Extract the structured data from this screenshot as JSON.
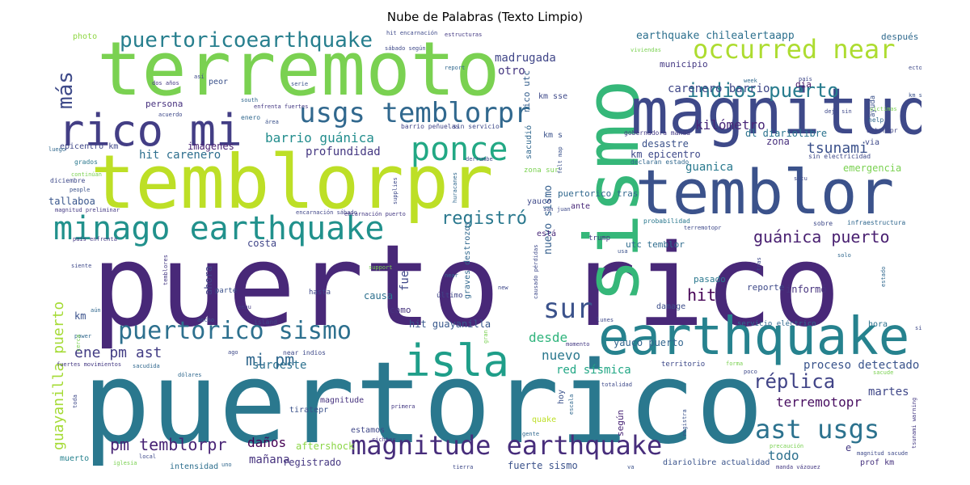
{
  "figure": {
    "title": "Nube de Palabras (Texto Limpio)"
  },
  "words": {
    "puerto_rico": {
      "text": "puerto rico",
      "color": "#482878"
    },
    "puertorico": {
      "text": "puertorico",
      "color": "#2a788e"
    },
    "terremoto": {
      "text": "terremoto",
      "color": "#7ad151"
    },
    "temblorpr": {
      "text": "temblorpr",
      "color": "#bddf26"
    },
    "sismo": {
      "text": "sismo",
      "color": "#35b779"
    },
    "magnitud": {
      "text": "magnitud",
      "color": "#3e4989"
    },
    "temblor": {
      "text": "temblor",
      "color": "#3b528b"
    },
    "earthquake": {
      "text": "earthquake",
      "color": "#26828e"
    },
    "rico_mi": {
      "text": "rico mi",
      "color": "#433e85"
    },
    "isla": {
      "text": "isla",
      "color": "#1f9e89"
    },
    "minago_earthquake": {
      "text": "minago earthquake",
      "color": "#21918c"
    },
    "magnitude_earthquake": {
      "text": "magnitude earthquake",
      "color": "#472d7b"
    },
    "usgs_temblorpr": {
      "text": "usgs temblorpr",
      "color": "#31688e"
    },
    "ponce": {
      "text": "ponce",
      "color": "#22a884"
    },
    "occurred_near": {
      "text": "occurred near",
      "color": "#addc30"
    },
    "puertorico_sismo": {
      "text": "puertorico sismo",
      "color": "#2d708e"
    },
    "puertoricoearthquake": {
      "text": "puertoricoearthquake",
      "color": "#277f8e"
    },
    "sur": {
      "text": "sur",
      "color": "#3b528b"
    },
    "ast_usgs": {
      "text": "ast usgs",
      "color": "#2c728e"
    },
    "indios_puerto": {
      "text": "indios puerto",
      "color": "#287c8e"
    },
    "mas": {
      "text": "más",
      "color": "#3e4a89"
    },
    "guanica_puerto": {
      "text": "guánica puerto",
      "color": "#481f70"
    },
    "replica": {
      "text": "réplica",
      "color": "#414487"
    },
    "tsunami": {
      "text": "tsunami",
      "color": "#3b518b"
    },
    "registro": {
      "text": "registró",
      "color": "#2a788e"
    },
    "guayanilla_puerto": {
      "text": "guayanilla puerto",
      "color": "#a5db36"
    },
    "pm_temblorpr": {
      "text": "pm temblorpr",
      "color": "#482475"
    },
    "mi_pm": {
      "text": "mi pm",
      "color": "#31688e"
    },
    "earthquake_chilealertaapp": {
      "text": "earthquake chilealertaapp",
      "color": "#2d708e"
    },
    "madrugada": {
      "text": "madrugada",
      "color": "#404688"
    },
    "otro": {
      "text": "otro",
      "color": "#453781"
    },
    "carenero_barrio": {
      "text": "carenero barrio",
      "color": "#3f4788"
    },
    "kilometro": {
      "text": "kilómetro",
      "color": "#482677"
    },
    "barrio_guanica": {
      "text": "barrio guánica",
      "color": "#228d8d"
    },
    "profundidad": {
      "text": "profundidad",
      "color": "#453882"
    },
    "hit_carenero": {
      "text": "hit carenero",
      "color": "#2e6f8e"
    },
    "imagenes": {
      "text": "imágenes",
      "color": "#482173"
    },
    "emergencia": {
      "text": "emergencia",
      "color": "#7ad151"
    },
    "guanica": {
      "text": "guanica",
      "color": "#29798e"
    },
    "desde": {
      "text": "desde",
      "color": "#2fb47c"
    },
    "nuevo": {
      "text": "nuevo",
      "color": "#2a788e"
    },
    "suroeste": {
      "text": "suroeste",
      "color": "#2d718e"
    },
    "ene_pm_ast": {
      "text": "ene  pm ast",
      "color": "#433d84"
    },
    "hit": {
      "text": "hit",
      "color": "#440154"
    },
    "red_sismica": {
      "text": "red sísmica",
      "color": "#22a785"
    },
    "proceso_detectado": {
      "text": "proceso detectado",
      "color": "#3a548c"
    },
    "terremotopr": {
      "text": "terremotopr",
      "color": "#470d60"
    },
    "todo": {
      "text": "todo",
      "color": "#2d708e"
    },
    "martes": {
      "text": "martes",
      "color": "#3f4788"
    },
    "danos": {
      "text": "daños",
      "color": "#440154"
    },
    "manana": {
      "text": "mañana",
      "color": "#46327e"
    },
    "registrado": {
      "text": "registrado",
      "color": "#453781"
    },
    "aftershock": {
      "text": "aftershock",
      "color": "#8bd646"
    },
    "fuerte_sismo": {
      "text": "fuerte sismo",
      "color": "#3b528b"
    },
    "tallaboa": {
      "text": "tallaboa",
      "color": "#39568c"
    },
    "km_epicentro": {
      "text": "km epicentro",
      "color": "#3e4989"
    },
    "desastre": {
      "text": "desastre",
      "color": "#3b528b"
    },
    "zona": {
      "text": "zona",
      "color": "#472f7d"
    },
    "dl_diariolibre": {
      "text": "dl diariolibre",
      "color": "#2c738e"
    },
    "municipio": {
      "text": "municipio",
      "color": "#443983"
    },
    "dia": {
      "text": "día",
      "color": "#481769"
    },
    "despues": {
      "text": "después",
      "color": "#306a8e"
    },
    "causa": {
      "text": "causa",
      "color": "#2d708e"
    },
    "como": {
      "text": "como",
      "color": "#46337e"
    },
    "hit_guayanilla": {
      "text": "hit guayanilla",
      "color": "#38588c"
    },
    "yauco_puerto": {
      "text": "yauco puerto",
      "color": "#32658e"
    },
    "km": {
      "text": "km",
      "color": "#3b528b"
    },
    "costa": {
      "text": "costa",
      "color": "#404588"
    },
    "ahora": {
      "text": "ahora",
      "color": "#414487"
    },
    "fue": {
      "text": "fue",
      "color": "#3f4889"
    },
    "nuevo_sismo": {
      "text": "nuevo sismo",
      "color": "#355f8d"
    },
    "informo": {
      "text": "informó",
      "color": "#46337e"
    },
    "pasado": {
      "text": "pasado",
      "color": "#2a788e"
    },
    "reporte": {
      "text": "reporte",
      "color": "#3e4a89"
    },
    "persona": {
      "text": "persona",
      "color": "#46307e"
    },
    "peor": {
      "text": "peor",
      "color": "#3b528b"
    },
    "epicentro_km": {
      "text": "epicentro km",
      "color": "#3f4788"
    },
    "photo": {
      "text": "photo",
      "color": "#8fd744"
    },
    "puertorico_tras": {
      "text": "puertorico tras",
      "color": "#31688e"
    },
    "yauco": {
      "text": "yauco",
      "color": "#3e4989"
    },
    "ante": {
      "text": "ante",
      "color": "#482878"
    },
    "quake": {
      "text": "quake",
      "color": "#bddf26"
    },
    "hoy": {
      "text": "hoy",
      "color": "#3b528b"
    },
    "segun": {
      "text": "según",
      "color": "#482475"
    },
    "estamos": {
      "text": "estamos",
      "color": "#3f4788"
    },
    "magnitude": {
      "text": "magnitude",
      "color": "#46327e"
    },
    "tiratepr": {
      "text": "tiratepr",
      "color": "#3b528b"
    },
    "intensidad": {
      "text": "intensidad",
      "color": "#2e6f8e"
    },
    "muerto": {
      "text": "muerto",
      "color": "#26828e"
    },
    "prof_km": {
      "text": "prof km",
      "color": "#46327e"
    },
    "diariolibre_actualidad": {
      "text": "diariolibre actualidad",
      "color": "#3a538b"
    },
    "damage": {
      "text": "damage",
      "color": "#3d4e8a"
    },
    "hora": {
      "text": "hora",
      "color": "#2c728e"
    },
    "via": {
      "text": "via",
      "color": "#3e4989"
    },
    "zona_sur": {
      "text": "zona sur",
      "color": "#7ad151"
    },
    "sacudio": {
      "text": "sacudió",
      "color": "#31688e"
    },
    "km_s": {
      "text": "km s",
      "color": "#3b528b"
    },
    "km_sse": {
      "text": "km sse",
      "color": "#3e4989"
    },
    "rico_utc": {
      "text": "rico utc",
      "color": "#355f8d"
    },
    "utc_temblor": {
      "text": "utc temblor",
      "color": "#2f6c8e"
    },
    "esta": {
      "text": "está",
      "color": "#482878"
    },
    "trump": {
      "text": "trump",
      "color": "#443983"
    },
    "ultimo": {
      "text": "último",
      "color": "#404688"
    },
    "graves_destrozos": {
      "text": "graves destrozos",
      "color": "#31688e"
    },
    "parte": {
      "text": "parte",
      "color": "#3b528b"
    },
    "hasta": {
      "text": "hasta",
      "color": "#3f4788"
    },
    "servicio_electrico": {
      "text": "servicio eléctrico",
      "color": "#31688e"
    },
    "territorio": {
      "text": "territorio",
      "color": "#3e4989"
    },
    "barrio_penuelas": {
      "text": "barrio peñuelas",
      "color": "#414487"
    },
    "sin_servicio": {
      "text": "sin servicio",
      "color": "#3e4989"
    },
    "gobernadora_manda": {
      "text": "gobernadora manda",
      "color": "#443983"
    },
    "declaran_estado": {
      "text": "declaran estado",
      "color": "#31688e"
    },
    "sin_electricidad": {
      "text": "sin electricidad",
      "color": "#3e4989"
    },
    "ast_rapr": {
      "text": "ast rapr",
      "color": "#404688"
    },
    "help": {
      "text": "help",
      "color": "#31688e"
    },
    "ayuda": {
      "text": "ayuda",
      "color": "#3b528b"
    },
    "probabilidad": {
      "text": "probabilidad",
      "color": "#2a788e"
    },
    "infraestructura": {
      "text": "infraestructura",
      "color": "#31688e"
    },
    "sobre": {
      "text": "sobre",
      "color": "#3e4989"
    },
    "manda_vazquez": {
      "text": "manda vázquez",
      "color": "#443983"
    },
    "magnitud_sacude": {
      "text": "magnitud sacude",
      "color": "#3e4989"
    },
    "fuertes_movimientos": {
      "text": "fuertes movimientos",
      "color": "#443983"
    },
    "sacudida": {
      "text": "sacudida",
      "color": "#31688e"
    },
    "near_indios": {
      "text": "near indios",
      "color": "#3e4989"
    },
    "island": {
      "text": "island",
      "color": "#414487"
    },
    "magnitud_preliminar": {
      "text": "magnitud preliminar",
      "color": "#443983"
    },
    "encarnacion_sabado": {
      "text": "encarnación sábado",
      "color": "#404688"
    },
    "dos_anos": {
      "text": "dos años",
      "color": "#443983"
    },
    "diciembre": {
      "text": "diciembre",
      "color": "#3e4989"
    },
    "grados": {
      "text": "grados",
      "color": "#2a788e"
    },
    "luego": {
      "text": "luego",
      "color": "#31688e"
    },
    "people": {
      "text": "people",
      "color": "#3b528b"
    },
    "pais_enfrenta": {
      "text": "país enfrenta",
      "color": "#443983"
    },
    "siente": {
      "text": "siente",
      "color": "#3e4989"
    },
    "power": {
      "text": "power",
      "color": "#31688e"
    },
    "richter": {
      "text": "richter",
      "color": "#443983"
    },
    "tierra": {
      "text": "tierra",
      "color": "#3e4989"
    },
    "gente": {
      "text": "gente",
      "color": "#31688e"
    },
    "primera": {
      "text": "primera",
      "color": "#443983"
    },
    "totalidad": {
      "text": "totalidad",
      "color": "#3e4989"
    },
    "escala": {
      "text": "escala",
      "color": "#31688e"
    },
    "registra": {
      "text": "registra",
      "color": "#3b528b"
    },
    "estructuras": {
      "text": "estructuras",
      "color": "#443983"
    },
    "viviendas": {
      "text": "viviendas",
      "color": "#7ad151"
    },
    "report": {
      "text": "report",
      "color": "#31688e"
    },
    "hit_encarnacion": {
      "text": "hit encarnación",
      "color": "#3e4989"
    },
    "sabado_segun": {
      "text": "sábado según",
      "color": "#3e4989"
    },
    "serie": {
      "text": "serie",
      "color": "#3b528b"
    },
    "south": {
      "text": "south",
      "color": "#31688e"
    },
    "enfrenta_fuertes": {
      "text": "enfrenta fuertes",
      "color": "#443983"
    },
    "acuerdo": {
      "text": "acuerdo",
      "color": "#3e4989"
    },
    "enero": {
      "text": "enero",
      "color": "#31688e"
    },
    "area": {
      "text": "área",
      "color": "#3b528b"
    },
    "pais": {
      "text": "país",
      "color": "#3e4989"
    },
    "week": {
      "text": "week",
      "color": "#31688e"
    },
    "deja_sin": {
      "text": "deja sin",
      "color": "#3e4989"
    },
    "victimas": {
      "text": "víctimas",
      "color": "#7ad151"
    },
    "situ": {
      "text": "situ",
      "color": "#3e4989"
    },
    "solo": {
      "text": "solo",
      "color": "#31688e"
    },
    "tras": {
      "text": "tras",
      "color": "#3e4989"
    },
    "estado": {
      "text": "estado",
      "color": "#31688e"
    },
    "usa": {
      "text": "usa",
      "color": "#3b528b"
    },
    "new": {
      "text": "new",
      "color": "#3e4989"
    },
    "near": {
      "text": "near",
      "color": "#31688e"
    },
    "momento": {
      "text": "momento",
      "color": "#443983"
    },
    "causado_perdidas": {
      "text": "causado pérdidas",
      "color": "#3e4989"
    },
    "san_juan": {
      "text": "san juan",
      "color": "#3e4989"
    },
    "encarnacion_puerto": {
      "text": "encarnación puerto",
      "color": "#443983"
    },
    "support": {
      "text": "support",
      "color": "#7ad151"
    },
    "dolares": {
      "text": "dólares",
      "color": "#31688e"
    },
    "ago": {
      "text": "ago",
      "color": "#3e4989"
    },
    "ancho": {
      "text": "ancho",
      "color": "#3b528b"
    },
    "aun": {
      "text": "aún",
      "color": "#31688e"
    },
    "eeuu": {
      "text": "eeuu",
      "color": "#443983"
    },
    "lunes": {
      "text": "lunes",
      "color": "#3e4989"
    },
    "continuan": {
      "text": "continúan",
      "color": "#7ad151"
    },
    "supplies": {
      "text": "supplies",
      "color": "#3e4989"
    },
    "huracanes": {
      "text": "huracanes",
      "color": "#31688e"
    },
    "derrumbe": {
      "text": "derrumbe",
      "color": "#3e4989"
    },
    "felt_map": {
      "text": "felt map",
      "color": "#3b528b"
    },
    "precaucion": {
      "text": "precaución",
      "color": "#7ad151"
    },
    "sacude": {
      "text": "sacude",
      "color": "#7ad151"
    },
    "ecto": {
      "text": "ecto",
      "color": "#3e4989"
    },
    "tsunami_warning": {
      "text": "tsunami warning",
      "color": "#443983"
    },
    "terremotopr_small": {
      "text": "terremotopr",
      "color": "#3e4989"
    },
    "temblores": {
      "text": "temblores",
      "color": "#443983"
    },
    "forma": {
      "text": "forma",
      "color": "#7ad151"
    },
    "poco": {
      "text": "poco",
      "color": "#3e4989"
    },
    "sin": {
      "text": "sin",
      "color": "#3e4989"
    },
    "e": {
      "text": "e",
      "color": "#443983"
    },
    "uno": {
      "text": "uno",
      "color": "#31688e"
    },
    "local": {
      "text": "local",
      "color": "#3e4989"
    },
    "iglesia": {
      "text": "iglesia",
      "color": "#7ad151"
    },
    "ya": {
      "text": "ya",
      "color": "#3b528b"
    },
    "gran": {
      "text": "gran",
      "color": "#7ad151"
    },
    "asi": {
      "text": "así",
      "color": "#3e4989"
    },
    "km_s2": {
      "text": "km s",
      "color": "#3b528b"
    },
    "toda": {
      "text": "toda",
      "color": "#3e4989"
    },
    "cerca": {
      "text": "cerca",
      "color": "#7ad151"
    }
  }
}
